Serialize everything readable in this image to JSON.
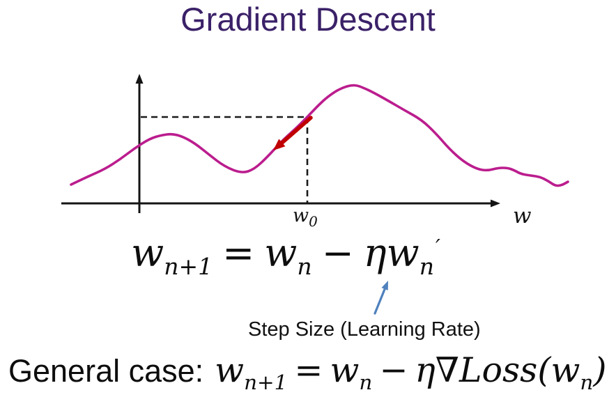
{
  "slide": {
    "title": "Gradient Descent",
    "title_color": "#3b2168",
    "background": "#ffffff",
    "text_color": "#111111"
  },
  "chart_data": {
    "type": "line",
    "title": "",
    "xlabel": "w",
    "ylabel": "",
    "description": "Qualitative sketch of a non-convex loss function over weight w. Dashed guide lines mark the starting point w0 on the curve; a red arrow shows the descent direction (negative gradient) down the slope.",
    "legend": "none",
    "grid": false,
    "colors": {
      "curve": "#bb1d8e",
      "axis": "#141414",
      "dashed": "#1a1a1a",
      "gradient_arrow": "#c00000"
    },
    "axes": {
      "x": {
        "from": [
          88,
          292
        ],
        "to": [
          718,
          292
        ]
      },
      "y": {
        "from": [
          200,
          306
        ],
        "to": [
          200,
          106
        ]
      }
    },
    "dashed_lines": {
      "horizontal": {
        "from": [
          202,
          168
        ],
        "to": [
          441,
          168
        ]
      },
      "vertical": {
        "from": [
          441,
          168
        ],
        "to": [
          441,
          291
        ]
      }
    },
    "gradient_arrow": {
      "from": [
        446,
        169
      ],
      "to": [
        392,
        216
      ]
    },
    "start_point_label": {
      "base": "w",
      "sub": "0"
    },
    "curve_points": [
      [
        102,
        265
      ],
      [
        125,
        254
      ],
      [
        150,
        243
      ],
      [
        172,
        229
      ],
      [
        193,
        213
      ],
      [
        215,
        199
      ],
      [
        232,
        194
      ],
      [
        247,
        192
      ],
      [
        262,
        196
      ],
      [
        280,
        206
      ],
      [
        300,
        222
      ],
      [
        322,
        239
      ],
      [
        347,
        249
      ],
      [
        365,
        243
      ],
      [
        385,
        224
      ],
      [
        405,
        202
      ],
      [
        425,
        184
      ],
      [
        441,
        168
      ],
      [
        456,
        152
      ],
      [
        470,
        139
      ],
      [
        488,
        127
      ],
      [
        508,
        121
      ],
      [
        524,
        127
      ],
      [
        538,
        134
      ],
      [
        556,
        144
      ],
      [
        580,
        158
      ],
      [
        605,
        172
      ],
      [
        625,
        191
      ],
      [
        645,
        214
      ],
      [
        665,
        232
      ],
      [
        685,
        243
      ],
      [
        700,
        245
      ],
      [
        715,
        241
      ],
      [
        728,
        241
      ],
      [
        737,
        244
      ],
      [
        748,
        250
      ],
      [
        762,
        252
      ],
      [
        775,
        254
      ],
      [
        787,
        260
      ],
      [
        797,
        267
      ],
      [
        806,
        266
      ],
      [
        815,
        261
      ]
    ]
  },
  "update_formula": {
    "w1": "w",
    "sub1": "n+1",
    "eq": "=",
    "w2": "w",
    "sub2": "n",
    "minus": "−",
    "eta": "η",
    "w3": "w",
    "sub3": "n",
    "prime": "′"
  },
  "step_size": {
    "label": "Step Size (Learning Rate)",
    "arrow": {
      "from": [
        538,
        450
      ],
      "to": [
        557,
        403
      ]
    },
    "arrow_color": "#4f81bd"
  },
  "general_case": {
    "prefix": "General case:",
    "w1": "w",
    "sub1": "n+1",
    "eq": "=",
    "w2": "w",
    "sub2": "n",
    "minus": "−",
    "eta_grad": "η∇",
    "loss": "Loss",
    "open": "(",
    "w3": "w",
    "sub3": "n",
    "close": ")"
  }
}
